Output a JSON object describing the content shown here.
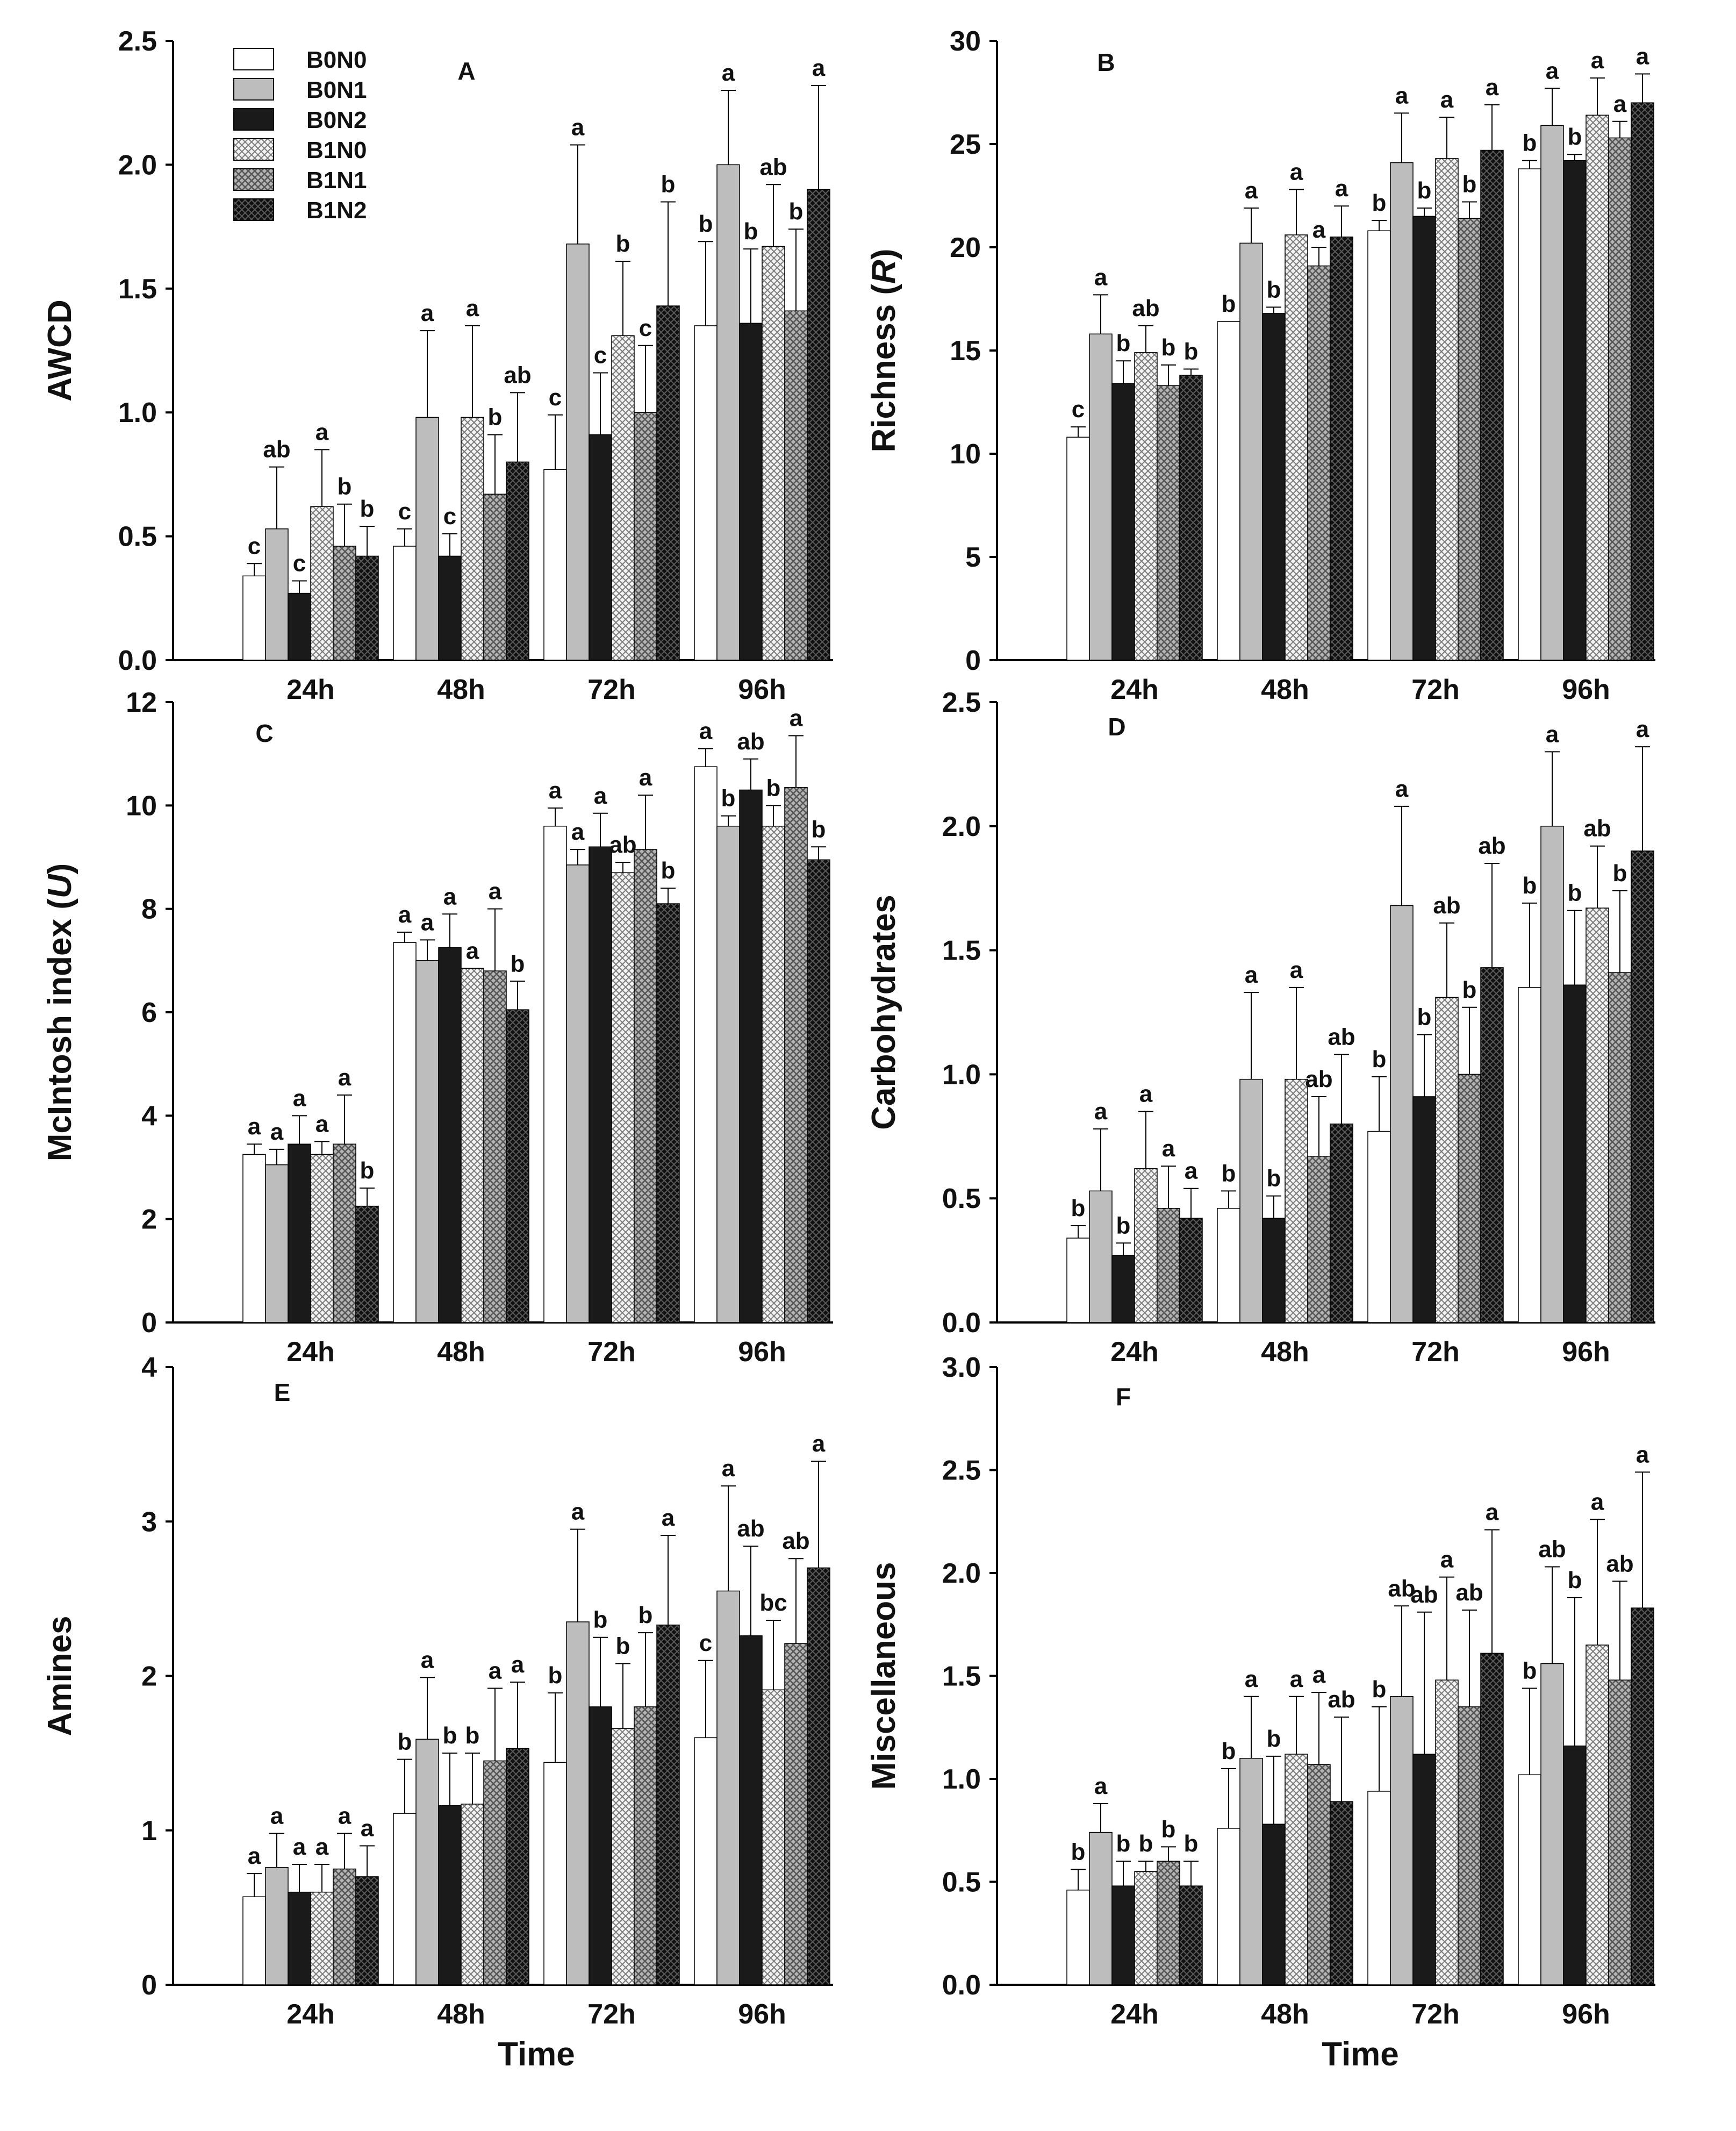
{
  "chart_data": [
    {
      "id": "A",
      "type": "bar",
      "title": "",
      "panel_label": "A",
      "xlabel": "",
      "ylabel": "AWCD",
      "categories": [
        "24h",
        "48h",
        "72h",
        "96h"
      ],
      "ylim": [
        0,
        2.5
      ],
      "yticks": [
        "0.0",
        "0.5",
        "1.0",
        "1.5",
        "2.0",
        "2.5"
      ],
      "series": [
        {
          "name": "B0N0",
          "values": [
            0.34,
            0.46,
            0.77,
            1.35
          ],
          "errors": [
            0.05,
            0.07,
            0.22,
            0.34
          ],
          "letters": [
            "c",
            "c",
            "c",
            "b"
          ]
        },
        {
          "name": "B0N1",
          "values": [
            0.53,
            0.98,
            1.68,
            2.0
          ],
          "errors": [
            0.25,
            0.35,
            0.4,
            0.3
          ],
          "letters": [
            "ab",
            "a",
            "a",
            "a"
          ]
        },
        {
          "name": "B0N2",
          "values": [
            0.27,
            0.42,
            0.91,
            1.36
          ],
          "errors": [
            0.05,
            0.09,
            0.25,
            0.3
          ],
          "letters": [
            "c",
            "c",
            "c",
            "b"
          ]
        },
        {
          "name": "B1N0",
          "values": [
            0.62,
            0.98,
            1.31,
            1.67
          ],
          "errors": [
            0.23,
            0.37,
            0.3,
            0.25
          ],
          "letters": [
            "a",
            "a",
            "b",
            "ab"
          ]
        },
        {
          "name": "B1N1",
          "values": [
            0.46,
            0.67,
            1.0,
            1.41
          ],
          "errors": [
            0.17,
            0.24,
            0.27,
            0.33
          ],
          "letters": [
            "b",
            "b",
            "c",
            "b"
          ]
        },
        {
          "name": "B1N2",
          "values": [
            0.42,
            0.8,
            1.43,
            1.9
          ],
          "errors": [
            0.12,
            0.28,
            0.42,
            0.42
          ],
          "letters": [
            "b",
            "ab",
            "b",
            "a"
          ]
        }
      ]
    },
    {
      "id": "B",
      "type": "bar",
      "title": "",
      "panel_label": "B",
      "xlabel": "",
      "ylabel": "Richness",
      "ylabel_italic": "R",
      "categories": [
        "24h",
        "48h",
        "72h",
        "96h"
      ],
      "ylim": [
        0,
        30
      ],
      "yticks": [
        "0",
        "5",
        "10",
        "15",
        "20",
        "25",
        "30"
      ],
      "series": [
        {
          "name": "B0N0",
          "values": [
            10.8,
            16.4,
            20.8,
            23.8
          ],
          "errors": [
            0.5,
            0.0,
            0.5,
            0.4
          ],
          "letters": [
            "c",
            "b",
            "b",
            "b"
          ]
        },
        {
          "name": "B0N1",
          "values": [
            15.8,
            20.2,
            24.1,
            25.9
          ],
          "errors": [
            1.9,
            1.7,
            2.4,
            1.8
          ],
          "letters": [
            "a",
            "a",
            "a",
            "a"
          ]
        },
        {
          "name": "B0N2",
          "values": [
            13.4,
            16.8,
            21.5,
            24.2
          ],
          "errors": [
            1.1,
            0.3,
            0.4,
            0.3
          ],
          "letters": [
            "b",
            "b",
            "b",
            "b"
          ]
        },
        {
          "name": "B1N0",
          "values": [
            14.9,
            20.6,
            24.3,
            26.4
          ],
          "errors": [
            1.3,
            2.2,
            2.0,
            1.8
          ],
          "letters": [
            "ab",
            "a",
            "a",
            "a"
          ]
        },
        {
          "name": "B1N1",
          "values": [
            13.3,
            19.1,
            21.4,
            25.3
          ],
          "errors": [
            1.0,
            0.9,
            0.8,
            0.8
          ],
          "letters": [
            "b",
            "a",
            "b",
            "a"
          ]
        },
        {
          "name": "B1N2",
          "values": [
            13.8,
            20.5,
            24.7,
            27.0
          ],
          "errors": [
            0.3,
            1.5,
            2.2,
            1.4
          ],
          "letters": [
            "b",
            "a",
            "a",
            "a"
          ]
        }
      ]
    },
    {
      "id": "C",
      "type": "bar",
      "title": "",
      "panel_label": "C",
      "xlabel": "",
      "ylabel": "McIntosh index",
      "ylabel_italic": "U",
      "categories": [
        "24h",
        "48h",
        "72h",
        "96h"
      ],
      "ylim": [
        0,
        12
      ],
      "yticks": [
        "0",
        "2",
        "4",
        "6",
        "8",
        "10",
        "12"
      ],
      "series": [
        {
          "name": "B0N0",
          "values": [
            3.25,
            7.35,
            9.6,
            10.75
          ],
          "errors": [
            0.2,
            0.2,
            0.35,
            0.35
          ],
          "letters": [
            "a",
            "a",
            "a",
            "a"
          ]
        },
        {
          "name": "B0N1",
          "values": [
            3.05,
            7.0,
            8.85,
            9.6
          ],
          "errors": [
            0.3,
            0.4,
            0.3,
            0.2
          ],
          "letters": [
            "a",
            "a",
            "a",
            "b"
          ]
        },
        {
          "name": "B0N2",
          "values": [
            3.45,
            7.25,
            9.2,
            10.3
          ],
          "errors": [
            0.55,
            0.65,
            0.65,
            0.6
          ],
          "letters": [
            "a",
            "a",
            "a",
            "ab"
          ]
        },
        {
          "name": "B1N0",
          "values": [
            3.25,
            6.85,
            8.7,
            9.6
          ],
          "errors": [
            0.25,
            0.0,
            0.2,
            0.4
          ],
          "letters": [
            "a",
            "a",
            "ab",
            "b"
          ]
        },
        {
          "name": "B1N1",
          "values": [
            3.45,
            6.8,
            9.15,
            10.35
          ],
          "errors": [
            0.95,
            1.2,
            1.05,
            1.0
          ],
          "letters": [
            "a",
            "a",
            "a",
            "a"
          ]
        },
        {
          "name": "B1N2",
          "values": [
            2.25,
            6.05,
            8.1,
            8.95
          ],
          "errors": [
            0.35,
            0.55,
            0.3,
            0.25
          ],
          "letters": [
            "b",
            "b",
            "b",
            "b"
          ]
        }
      ]
    },
    {
      "id": "D",
      "type": "bar",
      "title": "",
      "panel_label": "D",
      "xlabel": "",
      "ylabel": "Carbohydrates",
      "categories": [
        "24h",
        "48h",
        "72h",
        "96h"
      ],
      "ylim": [
        0,
        2.5
      ],
      "yticks": [
        "0.0",
        "0.5",
        "1.0",
        "1.5",
        "2.0",
        "2.5"
      ],
      "series": [
        {
          "name": "B0N0",
          "values": [
            0.34,
            0.46,
            0.77,
            1.35
          ],
          "errors": [
            0.05,
            0.07,
            0.22,
            0.34
          ],
          "letters": [
            "b",
            "b",
            "b",
            "b"
          ]
        },
        {
          "name": "B0N1",
          "values": [
            0.53,
            0.98,
            1.68,
            2.0
          ],
          "errors": [
            0.25,
            0.35,
            0.4,
            0.3
          ],
          "letters": [
            "a",
            "a",
            "a",
            "a"
          ]
        },
        {
          "name": "B0N2",
          "values": [
            0.27,
            0.42,
            0.91,
            1.36
          ],
          "errors": [
            0.05,
            0.09,
            0.25,
            0.3
          ],
          "letters": [
            "b",
            "b",
            "b",
            "b"
          ]
        },
        {
          "name": "B1N0",
          "values": [
            0.62,
            0.98,
            1.31,
            1.67
          ],
          "errors": [
            0.23,
            0.37,
            0.3,
            0.25
          ],
          "letters": [
            "a",
            "a",
            "ab",
            "ab"
          ]
        },
        {
          "name": "B1N1",
          "values": [
            0.46,
            0.67,
            1.0,
            1.41
          ],
          "errors": [
            0.17,
            0.24,
            0.27,
            0.33
          ],
          "letters": [
            "a",
            "ab",
            "b",
            "b"
          ]
        },
        {
          "name": "B1N2",
          "values": [
            0.42,
            0.8,
            1.43,
            1.9
          ],
          "errors": [
            0.12,
            0.28,
            0.42,
            0.42
          ],
          "letters": [
            "a",
            "ab",
            "ab",
            "a"
          ]
        }
      ]
    },
    {
      "id": "E",
      "type": "bar",
      "title": "",
      "panel_label": "E",
      "xlabel": "Time",
      "ylabel": "Amines",
      "categories": [
        "24h",
        "48h",
        "72h",
        "96h"
      ],
      "ylim": [
        0,
        4
      ],
      "yticks": [
        "0",
        "1",
        "2",
        "3",
        "4"
      ],
      "series": [
        {
          "name": "B0N0",
          "values": [
            0.57,
            1.11,
            1.44,
            1.6
          ],
          "errors": [
            0.15,
            0.35,
            0.45,
            0.5
          ],
          "letters": [
            "a",
            "b",
            "b",
            "c"
          ]
        },
        {
          "name": "B0N1",
          "values": [
            0.76,
            1.59,
            2.35,
            2.55
          ],
          "errors": [
            0.22,
            0.4,
            0.6,
            0.68
          ],
          "letters": [
            "a",
            "a",
            "a",
            "a"
          ]
        },
        {
          "name": "B0N2",
          "values": [
            0.6,
            1.16,
            1.8,
            2.26
          ],
          "errors": [
            0.18,
            0.34,
            0.45,
            0.58
          ],
          "letters": [
            "a",
            "b",
            "b",
            "ab"
          ]
        },
        {
          "name": "B1N0",
          "values": [
            0.6,
            1.17,
            1.66,
            1.91
          ],
          "errors": [
            0.18,
            0.33,
            0.42,
            0.45
          ],
          "letters": [
            "a",
            "b",
            "b",
            "bc"
          ]
        },
        {
          "name": "B1N1",
          "values": [
            0.75,
            1.45,
            1.8,
            2.21
          ],
          "errors": [
            0.23,
            0.47,
            0.48,
            0.55
          ],
          "letters": [
            "a",
            "a",
            "b",
            "ab"
          ]
        },
        {
          "name": "B1N2",
          "values": [
            0.7,
            1.53,
            2.33,
            2.7
          ],
          "errors": [
            0.2,
            0.43,
            0.58,
            0.69
          ],
          "letters": [
            "a",
            "a",
            "a",
            "a"
          ]
        }
      ]
    },
    {
      "id": "F",
      "type": "bar",
      "title": "",
      "panel_label": "F",
      "xlabel": "Time",
      "ylabel": "Miscellaneous",
      "categories": [
        "24h",
        "48h",
        "72h",
        "96h"
      ],
      "ylim": [
        0,
        3.0
      ],
      "yticks": [
        "0.0",
        "0.5",
        "1.0",
        "1.5",
        "2.0",
        "2.5",
        "3.0"
      ],
      "series": [
        {
          "name": "B0N0",
          "values": [
            0.46,
            0.76,
            0.94,
            1.02
          ],
          "errors": [
            0.1,
            0.29,
            0.41,
            0.42
          ],
          "letters": [
            "b",
            "b",
            "b",
            "b"
          ]
        },
        {
          "name": "B0N1",
          "values": [
            0.74,
            1.1,
            1.4,
            1.56
          ],
          "errors": [
            0.14,
            0.3,
            0.44,
            0.47
          ],
          "letters": [
            "a",
            "a",
            "ab",
            "ab"
          ]
        },
        {
          "name": "B0N2",
          "values": [
            0.48,
            0.78,
            1.12,
            1.16
          ],
          "errors": [
            0.12,
            0.33,
            0.69,
            0.72
          ],
          "letters": [
            "b",
            "b",
            "ab",
            "b"
          ]
        },
        {
          "name": "B1N0",
          "values": [
            0.55,
            1.12,
            1.48,
            1.65
          ],
          "errors": [
            0.05,
            0.28,
            0.5,
            0.61
          ],
          "letters": [
            "b",
            "a",
            "a",
            "a"
          ]
        },
        {
          "name": "B1N1",
          "values": [
            0.6,
            1.07,
            1.35,
            1.48
          ],
          "errors": [
            0.07,
            0.35,
            0.47,
            0.48
          ],
          "letters": [
            "b",
            "a",
            "ab",
            "ab"
          ]
        },
        {
          "name": "B1N2",
          "values": [
            0.48,
            0.89,
            1.61,
            1.83
          ],
          "errors": [
            0.12,
            0.41,
            0.6,
            0.66
          ],
          "letters": [
            "b",
            "ab",
            "a",
            "a"
          ]
        }
      ]
    }
  ],
  "legend": {
    "entries": [
      {
        "name": "B0N0",
        "pattern": "white"
      },
      {
        "name": "B0N1",
        "pattern": "gray"
      },
      {
        "name": "B0N2",
        "pattern": "black"
      },
      {
        "name": "B1N0",
        "pattern": "light-crosshatch"
      },
      {
        "name": "B1N1",
        "pattern": "medium-crosshatch"
      },
      {
        "name": "B1N2",
        "pattern": "dark-crosshatch"
      }
    ],
    "placement": "top-left of panel A"
  },
  "colors": {
    "axis": "#000000",
    "B0N0": "#ffffff",
    "B0N1": "#bdbdbd",
    "B0N2": "#1a1a1a",
    "B1N0": "#f2f2f2",
    "B1N1": "#9a9a9a",
    "B1N2": "#202020"
  }
}
